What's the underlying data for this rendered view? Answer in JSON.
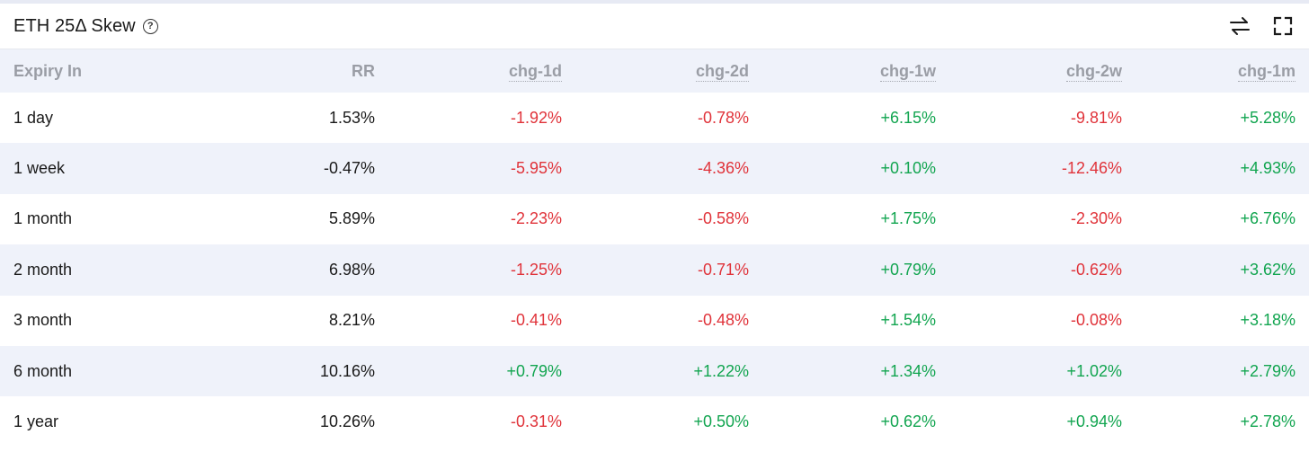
{
  "panel": {
    "title": "ETH 25Δ Skew",
    "help_icon": "question-circle-icon",
    "tools": [
      "swap-arrows-icon",
      "fullscreen-icon"
    ]
  },
  "colors": {
    "negative": "#e0333a",
    "positive": "#12a550",
    "stripe": "#eff2fa",
    "header_text": "#9a9da5"
  },
  "table": {
    "headers": [
      "Expiry In",
      "RR",
      "chg-1d",
      "chg-2d",
      "chg-1w",
      "chg-2w",
      "chg-1m"
    ],
    "rows": [
      [
        "1 day",
        "1.53%",
        "-1.92%",
        "-0.78%",
        "+6.15%",
        "-9.81%",
        "+5.28%"
      ],
      [
        "1 week",
        "-0.47%",
        "-5.95%",
        "-4.36%",
        "+0.10%",
        "-12.46%",
        "+4.93%"
      ],
      [
        "1 month",
        "5.89%",
        "-2.23%",
        "-0.58%",
        "+1.75%",
        "-2.30%",
        "+6.76%"
      ],
      [
        "2 month",
        "6.98%",
        "-1.25%",
        "-0.71%",
        "+0.79%",
        "-0.62%",
        "+3.62%"
      ],
      [
        "3 month",
        "8.21%",
        "-0.41%",
        "-0.48%",
        "+1.54%",
        "-0.08%",
        "+3.18%"
      ],
      [
        "6 month",
        "10.16%",
        "+0.79%",
        "+1.22%",
        "+1.34%",
        "+1.02%",
        "+2.79%"
      ],
      [
        "1 year",
        "10.26%",
        "-0.31%",
        "+0.50%",
        "+0.62%",
        "+0.94%",
        "+2.78%"
      ]
    ]
  }
}
